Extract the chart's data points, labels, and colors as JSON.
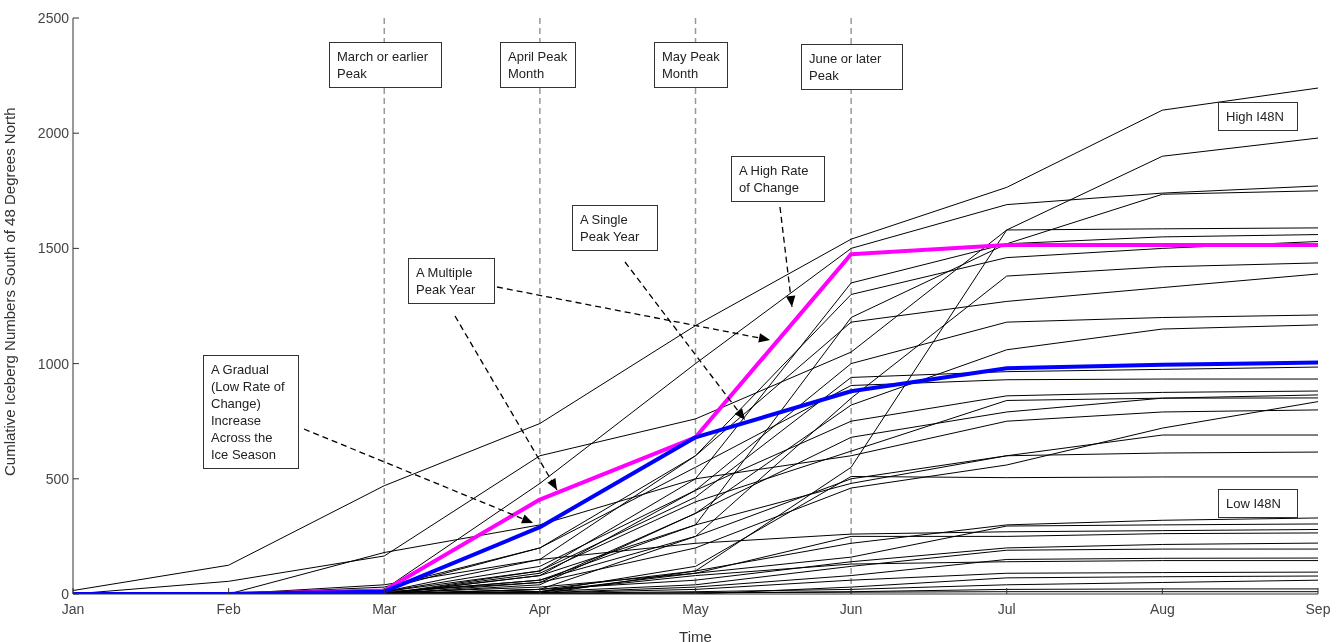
{
  "chart_data": {
    "type": "line",
    "xlabel": "Time",
    "ylabel": "Cumlative Iceberg Numbers South of 48 Degrees North",
    "categories": [
      "Jan",
      "Feb",
      "Mar",
      "Apr",
      "May",
      "Jun",
      "Jul",
      "Aug",
      "Sep"
    ],
    "ylim": [
      0,
      2500
    ],
    "yticks": [
      0,
      500,
      1000,
      1500,
      2000,
      2500
    ],
    "grid": false,
    "legend": false,
    "marker": "none",
    "line_style": "solid",
    "ref_lines": [
      {
        "axis": "x",
        "value": "Mar",
        "color": "#999999",
        "line_style": "dashed"
      },
      {
        "axis": "x",
        "value": "Apr",
        "color": "#999999",
        "line_style": "dashed"
      },
      {
        "axis": "x",
        "value": "May",
        "color": "#999999",
        "line_style": "dashed"
      },
      {
        "axis": "x",
        "value": "Jun",
        "color": "#999999",
        "line_style": "dashed"
      }
    ],
    "annotations": [
      "March or earlier Peak",
      "April Peak Month",
      "May Peak Month",
      "June or later Peak",
      "A High Rate of Change",
      "A Single Peak Year",
      "A Multiple Peak Year",
      "A Gradual (Low Rate of Change) Increase Across the Ice Season",
      "High I48N",
      "Low I48N"
    ],
    "series": [
      {
        "color": "#000000",
        "values": [
          15,
          125,
          470,
          740,
          1165,
          1540,
          1765,
          2100,
          2196
        ]
      },
      {
        "color": "#000000",
        "values": [
          0,
          55,
          165,
          600,
          760,
          1050,
          1580,
          1900,
          1979
        ]
      },
      {
        "color": "#000000",
        "values": [
          0,
          0,
          20,
          480,
          1000,
          1500,
          1690,
          1740,
          1771
        ]
      },
      {
        "color": "#000000",
        "values": [
          0,
          0,
          10,
          100,
          500,
          1350,
          1520,
          1735,
          1750
        ]
      },
      {
        "color": "#000000",
        "values": [
          0,
          0,
          5,
          60,
          300,
          1200,
          1520,
          1550,
          1560
        ]
      },
      {
        "color": "#000000",
        "values": [
          0,
          0,
          0,
          0,
          100,
          550,
          1580,
          1585,
          1589
        ]
      },
      {
        "color": "#000000",
        "values": [
          0,
          0,
          30,
          200,
          600,
          1300,
          1460,
          1500,
          1530
        ]
      },
      {
        "color": "#000000",
        "values": [
          0,
          0,
          0,
          20,
          250,
          850,
          1380,
          1420,
          1437
        ]
      },
      {
        "color": "#000000",
        "values": [
          0,
          0,
          10,
          150,
          600,
          1180,
          1270,
          1330,
          1389
        ]
      },
      {
        "color": "#000000",
        "values": [
          0,
          0,
          0,
          80,
          450,
          1000,
          1180,
          1200,
          1211
        ]
      },
      {
        "color": "#000000",
        "values": [
          0,
          0,
          0,
          50,
          350,
          820,
          1060,
          1150,
          1168
        ]
      },
      {
        "color": "#000000",
        "values": [
          0,
          0,
          0,
          100,
          420,
          940,
          965,
          975,
          985
        ]
      },
      {
        "color": "#000000",
        "values": [
          0,
          0,
          20,
          200,
          550,
          905,
          930,
          933,
          933
        ]
      },
      {
        "color": "#000000",
        "values": [
          0,
          0,
          10,
          120,
          450,
          750,
          860,
          875,
          881
        ]
      },
      {
        "color": "#000000",
        "values": [
          0,
          0,
          0,
          90,
          400,
          620,
          840,
          850,
          864
        ]
      },
      {
        "color": "#000000",
        "values": [
          0,
          0,
          0,
          40,
          350,
          680,
          790,
          850,
          851
        ]
      },
      {
        "color": "#000000",
        "values": [
          0,
          0,
          180,
          300,
          500,
          600,
          750,
          790,
          799
        ]
      },
      {
        "color": "#000000",
        "values": [
          0,
          0,
          5,
          60,
          250,
          500,
          600,
          690,
          690
        ]
      },
      {
        "color": "#000000",
        "values": [
          0,
          0,
          10,
          50,
          200,
          460,
          560,
          720,
          835
        ]
      },
      {
        "color": "#000000",
        "values": [
          0,
          0,
          0,
          80,
          300,
          480,
          600,
          612,
          616
        ]
      },
      {
        "color": "#000000",
        "values": [
          0,
          0,
          0,
          10,
          120,
          510,
          505,
          508,
          508
        ]
      },
      {
        "color": "#000000",
        "values": [
          0,
          0,
          0,
          20,
          100,
          220,
          300,
          320,
          330
        ]
      },
      {
        "color": "#000000",
        "values": [
          0,
          0,
          0,
          10,
          90,
          160,
          295,
          300,
          304
        ]
      },
      {
        "color": "#000000",
        "values": [
          0,
          0,
          5,
          30,
          90,
          250,
          250,
          262,
          265
        ]
      },
      {
        "color": "#000000",
        "values": [
          0,
          0,
          0,
          20,
          60,
          140,
          200,
          215,
          221
        ]
      },
      {
        "color": "#000000",
        "values": [
          0,
          0,
          0,
          10,
          40,
          120,
          190,
          195,
          195
        ]
      },
      {
        "color": "#000000",
        "values": [
          0,
          0,
          0,
          5,
          30,
          80,
          150,
          155,
          156
        ]
      },
      {
        "color": "#000000",
        "values": [
          0,
          0,
          0,
          5,
          20,
          60,
          90,
          93,
          95
        ]
      },
      {
        "color": "#000000",
        "values": [
          0,
          0,
          0,
          3,
          10,
          20,
          40,
          50,
          60
        ]
      },
      {
        "color": "#000000",
        "values": [
          0,
          0,
          0,
          0,
          5,
          10,
          20,
          22,
          22
        ]
      },
      {
        "color": "#000000",
        "values": [
          0,
          0,
          40,
          150,
          220,
          260,
          270,
          275,
          280
        ]
      },
      {
        "color": "#000000",
        "values": [
          0,
          0,
          0,
          2,
          5,
          8,
          10,
          10,
          10
        ]
      },
      {
        "color": "#000000",
        "values": [
          0,
          0,
          0,
          10,
          80,
          130,
          140,
          145,
          145
        ]
      },
      {
        "color": "#000000",
        "values": [
          0,
          0,
          0,
          0,
          0,
          30,
          70,
          75,
          78
        ]
      },
      {
        "color": "#ff00ff",
        "values": [
          0,
          0,
          15,
          410,
          680,
          1475,
          1515,
          1515,
          1515
        ]
      },
      {
        "color": "#0000ff",
        "values": [
          0,
          0,
          10,
          290,
          680,
          880,
          980,
          995,
          1005
        ]
      }
    ]
  }
}
